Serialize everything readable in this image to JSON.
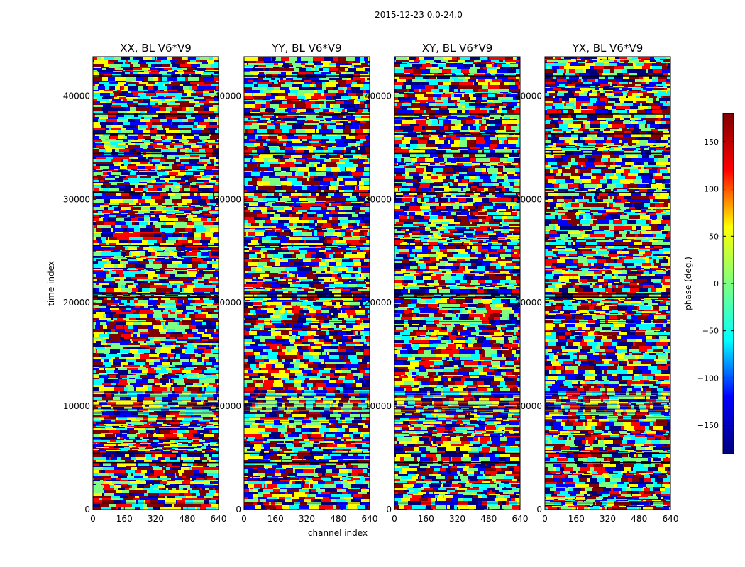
{
  "figure": {
    "suptitle": "2015-12-23 0.0-24.0"
  },
  "chart_data": {
    "type": "heatmap",
    "suptitle": "2015-12-23 0.0-24.0",
    "xlabel": "channel index",
    "ylabel": "time index",
    "xlim": [
      0,
      640
    ],
    "ylim": [
      0,
      43800
    ],
    "xticks": [
      0,
      160,
      320,
      480,
      640
    ],
    "yticks": [
      0,
      10000,
      20000,
      30000,
      40000
    ],
    "panels": [
      {
        "title": "XX, BL V6*V9"
      },
      {
        "title": "YY, BL V6*V9"
      },
      {
        "title": "XY, BL V6*V9"
      },
      {
        "title": "YX, BL V6*V9"
      }
    ],
    "colorbar": {
      "label": "phase (deg.)",
      "range": [
        -180,
        180
      ],
      "ticks": [
        -150,
        -100,
        -50,
        0,
        50,
        100,
        150
      ],
      "tick_labels": [
        "−150",
        "−100",
        "−50",
        "0",
        "50",
        "100",
        "150"
      ],
      "colormap": "jet",
      "stops": [
        "#00007f",
        "#0000ff",
        "#00ffff",
        "#7fff7f",
        "#ffff00",
        "#ff0000",
        "#7f0000"
      ]
    }
  }
}
